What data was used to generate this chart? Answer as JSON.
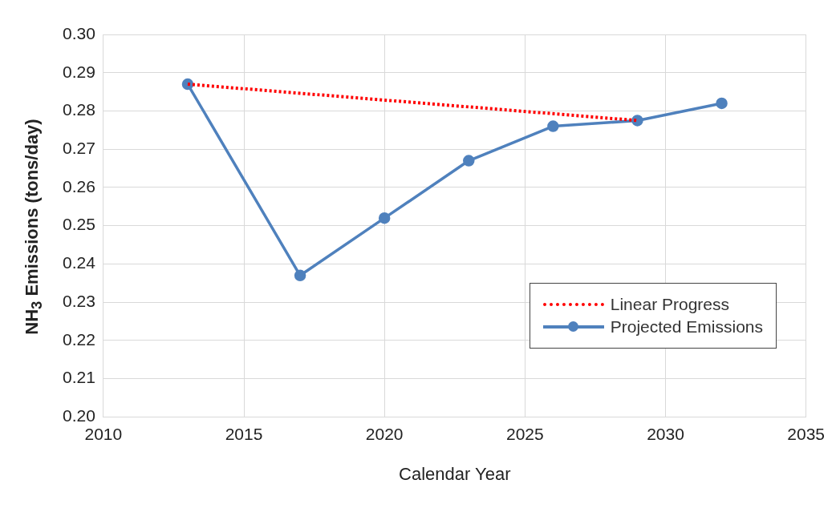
{
  "chart_data": {
    "type": "line",
    "xlabel": "Calendar Year",
    "ylabel": "NH$_{3}$ Emissions (tons/day)",
    "xlim": [
      2010,
      2035
    ],
    "xticks": [
      2010,
      2015,
      2020,
      2025,
      2030,
      2035
    ],
    "ylim": [
      0.2,
      0.3
    ],
    "yticks": [
      {
        "value": 0.2,
        "label": "0.20"
      },
      {
        "value": 0.21,
        "label": "0.21"
      },
      {
        "value": 0.22,
        "label": "0.22"
      },
      {
        "value": 0.23,
        "label": "0.23"
      },
      {
        "value": 0.24,
        "label": "0.24"
      },
      {
        "value": 0.25,
        "label": "0.25"
      },
      {
        "value": 0.26,
        "label": "0.26"
      },
      {
        "value": 0.27,
        "label": "0.27"
      },
      {
        "value": 0.28,
        "label": "0.28"
      },
      {
        "value": 0.29,
        "label": "0.29"
      },
      {
        "value": 0.3,
        "label": "0.30"
      }
    ],
    "grid": true,
    "legend": "bottom right",
    "series": [
      {
        "name": "Linear Progress",
        "color": "#ff0000",
        "line_style": "dotted",
        "marker": "none",
        "x": [
          2013,
          2029
        ],
        "values": [
          0.287,
          0.2775
        ]
      },
      {
        "name": "Projected Emissions",
        "color": "#4f81bd",
        "line_style": "solid",
        "marker": "circle",
        "x": [
          2013,
          2017,
          2020,
          2023,
          2026,
          2029,
          2032
        ],
        "values": [
          0.287,
          0.237,
          0.252,
          0.267,
          0.276,
          0.2775,
          0.282
        ]
      }
    ]
  }
}
